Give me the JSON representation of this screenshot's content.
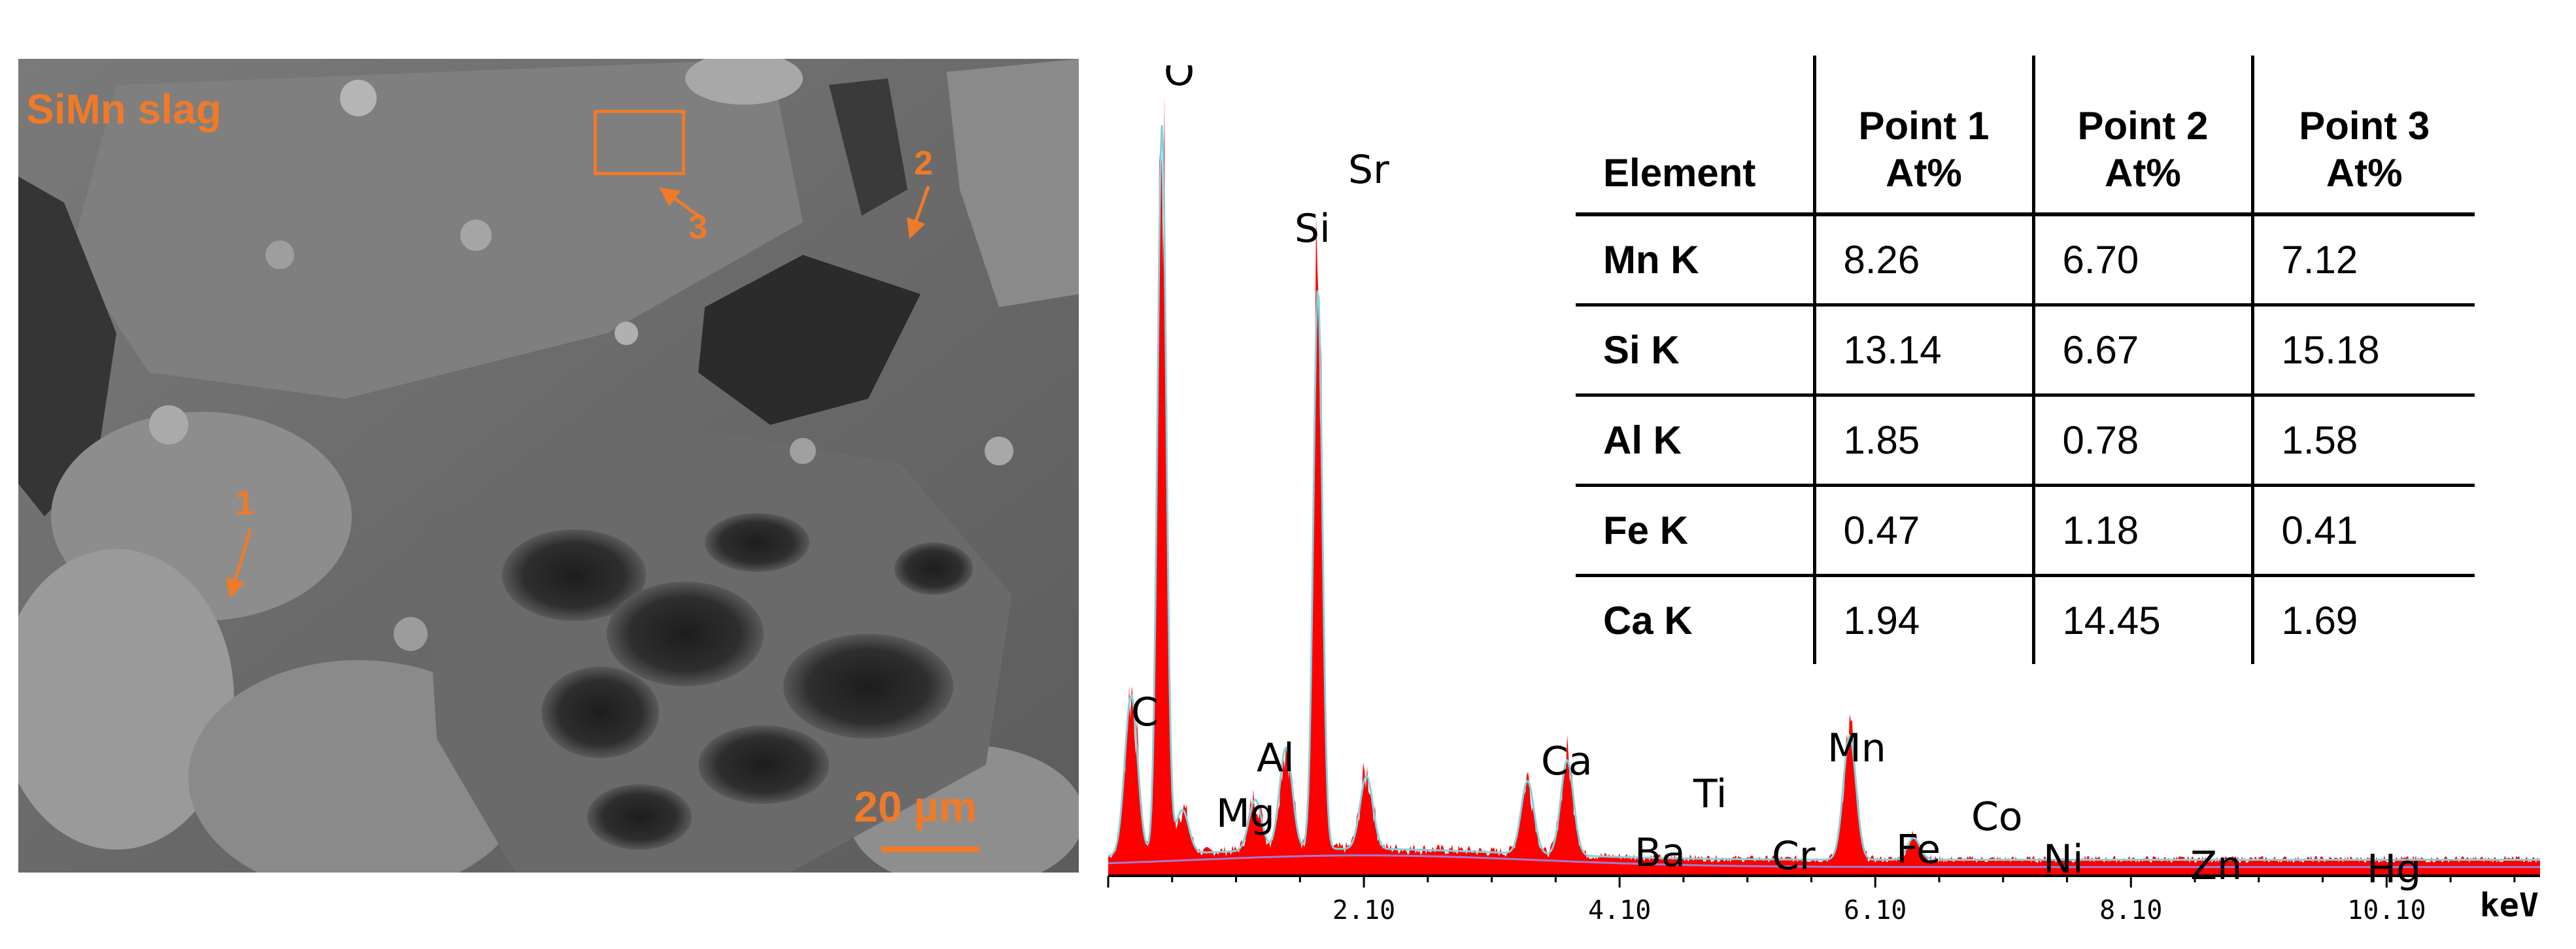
{
  "sem": {
    "title": "SiMn slag",
    "points": [
      {
        "id": "1",
        "label": "1"
      },
      {
        "id": "2",
        "label": "2"
      },
      {
        "id": "3",
        "label": "3"
      }
    ],
    "scale_bar": "20 µm",
    "colors": {
      "annotation": "#ee7a2a"
    }
  },
  "table": {
    "headers": [
      "Element",
      "Point 1\nAt%",
      "Point 2\nAt%",
      "Point 3\nAt%"
    ],
    "rows": [
      {
        "element": "Mn K",
        "values": [
          "8.26",
          "6.70",
          "7.12"
        ]
      },
      {
        "element": "Si K",
        "values": [
          "13.14",
          "6.67",
          "15.18"
        ]
      },
      {
        "element": "Al K",
        "values": [
          "1.85",
          "0.78",
          "1.58"
        ]
      },
      {
        "element": "Fe K",
        "values": [
          "0.47",
          "1.18",
          "0.41"
        ]
      },
      {
        "element": "Ca K",
        "values": [
          "1.94",
          "14.45",
          "1.69"
        ]
      }
    ]
  },
  "chart_data": {
    "type": "area",
    "title": "",
    "xlabel": "keV",
    "ylabel": "",
    "xlim": [
      0.1,
      11.3
    ],
    "ylim": [
      0,
      100
    ],
    "x_ticks": [
      "2.10",
      "4.10",
      "6.10",
      "8.10",
      "10.10"
    ],
    "x_tick_values": [
      2.1,
      4.1,
      6.1,
      8.1,
      10.1
    ],
    "grid": false,
    "colors": {
      "fill": "#ff0000",
      "overlay": "#7fd3de",
      "background": "#9b7fd0"
    },
    "peaks": [
      {
        "label": "C",
        "energy": 0.28,
        "height": 22
      },
      {
        "label": "O",
        "energy": 0.52,
        "height": 100
      },
      {
        "label": "Mg",
        "energy": 1.25,
        "height": 7
      },
      {
        "label": "Al",
        "energy": 1.49,
        "height": 14
      },
      {
        "label": "Si",
        "energy": 1.74,
        "height": 77
      },
      {
        "label": "Sr",
        "energy": 1.81,
        "height": 0
      },
      {
        "label": "Ca",
        "energy": 3.69,
        "height": 13
      },
      {
        "label": "Ba",
        "energy": 4.47,
        "height": 0
      },
      {
        "label": "Ti",
        "energy": 4.51,
        "height": 0
      },
      {
        "label": "Cr",
        "energy": 5.41,
        "height": 0
      },
      {
        "label": "Mn",
        "energy": 5.9,
        "height": 17
      },
      {
        "label": "Fe",
        "energy": 6.4,
        "height": 3
      },
      {
        "label": "Co",
        "energy": 6.93,
        "height": 0
      },
      {
        "label": "Ni",
        "energy": 7.48,
        "height": 0
      },
      {
        "label": "Zn",
        "energy": 8.64,
        "height": 0
      },
      {
        "label": "Hg",
        "energy": 9.99,
        "height": 0
      }
    ],
    "minor_peaks": [
      {
        "energy": 2.12,
        "height": 10
      },
      {
        "energy": 3.38,
        "height": 10
      },
      {
        "energy": 0.68,
        "height": 6
      }
    ]
  }
}
